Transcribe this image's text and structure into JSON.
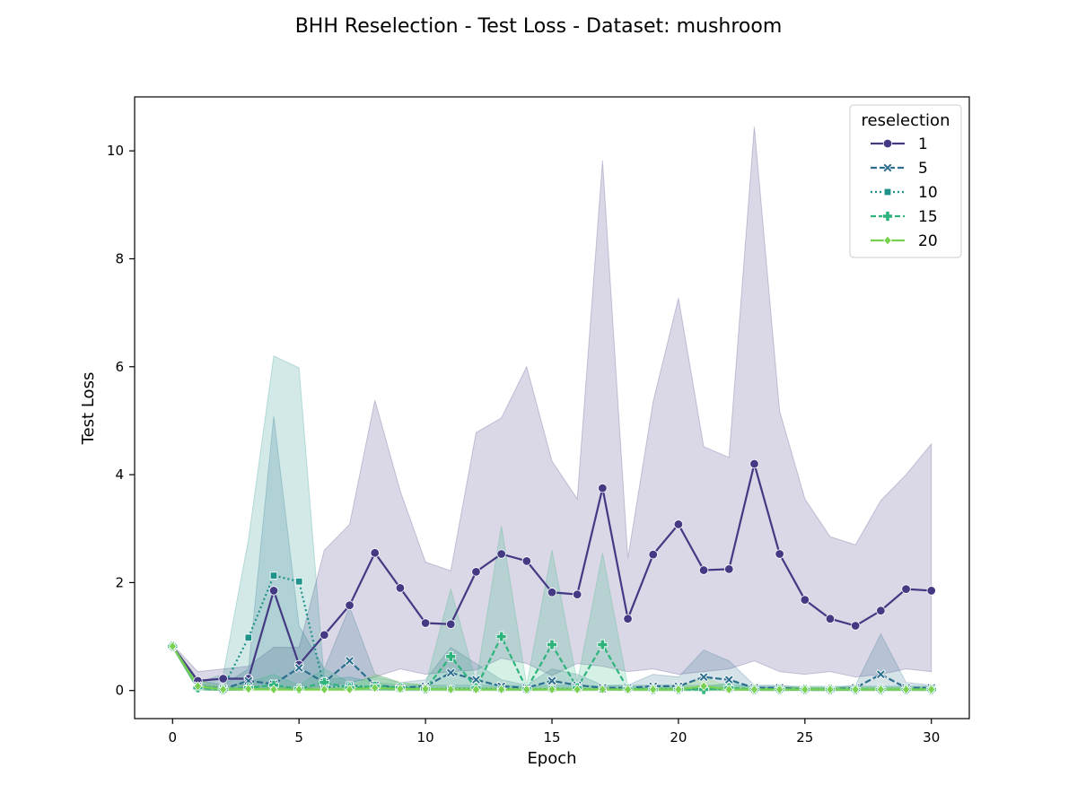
{
  "chart_data": {
    "type": "line",
    "title": "BHH Reselection - Test Loss - Dataset: mushroom",
    "xlabel": "Epoch",
    "ylabel": "Test Loss",
    "xlim": [
      -1.5,
      31.5
    ],
    "ylim": [
      -0.52,
      11.0
    ],
    "xticks": [
      0,
      5,
      10,
      15,
      20,
      25,
      30
    ],
    "yticks": [
      0,
      2,
      4,
      6,
      8,
      10
    ],
    "grid": false,
    "legend": {
      "title": "reselection",
      "placement": "top-right"
    },
    "x": [
      0,
      1,
      2,
      3,
      4,
      5,
      6,
      7,
      8,
      9,
      10,
      11,
      12,
      13,
      14,
      15,
      16,
      17,
      18,
      19,
      20,
      21,
      22,
      23,
      24,
      25,
      26,
      27,
      28,
      29,
      30
    ],
    "series": [
      {
        "name": "1",
        "color": "#443983",
        "dash": "",
        "marker": "circle",
        "values": [
          0.82,
          0.18,
          0.22,
          0.22,
          1.85,
          0.48,
          1.03,
          1.58,
          2.55,
          1.9,
          1.25,
          1.23,
          2.2,
          2.53,
          2.4,
          1.82,
          1.78,
          3.75,
          1.33,
          2.52,
          3.08,
          2.23,
          2.25,
          4.2,
          2.53,
          1.68,
          1.33,
          1.2,
          1.48,
          1.88,
          1.85
        ],
        "band_upper": [
          0.85,
          0.35,
          0.4,
          0.45,
          0.8,
          0.8,
          2.6,
          3.08,
          5.38,
          3.7,
          2.38,
          2.22,
          4.78,
          5.05,
          6.0,
          4.25,
          3.55,
          9.82,
          2.45,
          5.35,
          7.27,
          4.52,
          4.32,
          10.45,
          5.18,
          3.55,
          2.85,
          2.7,
          3.52,
          4.0,
          4.57
        ],
        "band_lower": [
          0.8,
          0.05,
          0.02,
          0.02,
          0.05,
          0.02,
          0.08,
          0.15,
          0.25,
          0.4,
          0.3,
          0.35,
          0.38,
          0.6,
          0.5,
          0.28,
          0.5,
          0.45,
          0.35,
          0.4,
          0.3,
          0.35,
          0.4,
          0.55,
          0.35,
          0.3,
          0.35,
          0.25,
          0.3,
          0.4,
          0.35
        ]
      },
      {
        "name": "5",
        "color": "#2c6e8e",
        "dash": "7,3",
        "marker": "x",
        "values": [
          0.82,
          0.08,
          0.03,
          0.18,
          0.12,
          0.42,
          0.15,
          0.55,
          0.1,
          0.05,
          0.08,
          0.33,
          0.2,
          0.08,
          0.05,
          0.18,
          0.1,
          0.05,
          0.05,
          0.08,
          0.08,
          0.25,
          0.2,
          0.05,
          0.05,
          0.02,
          0.02,
          0.05,
          0.3,
          0.05,
          0.05
        ],
        "band_upper": [
          0.84,
          0.2,
          0.1,
          0.4,
          5.08,
          1.2,
          0.4,
          1.55,
          0.3,
          0.15,
          0.2,
          0.8,
          0.5,
          0.2,
          0.1,
          0.4,
          0.3,
          0.1,
          0.1,
          0.3,
          0.25,
          0.75,
          0.55,
          0.1,
          0.1,
          0.05,
          0.05,
          0.1,
          1.05,
          0.15,
          0.1
        ],
        "band_lower": [
          0.8,
          0.02,
          0.0,
          0.02,
          0.02,
          0.05,
          0.02,
          0.05,
          0.02,
          0.01,
          0.02,
          0.05,
          0.05,
          0.02,
          0.01,
          0.03,
          0.02,
          0.01,
          0.01,
          0.02,
          0.02,
          0.02,
          0.02,
          0.01,
          0.01,
          0.0,
          0.0,
          0.01,
          0.02,
          0.01,
          0.01
        ]
      },
      {
        "name": "10",
        "color": "#1f928c",
        "dash": "2,3",
        "marker": "square",
        "values": [
          0.82,
          0.06,
          0.05,
          0.98,
          2.13,
          2.02,
          0.05,
          0.1,
          0.05,
          0.03,
          0.03,
          0.03,
          0.03,
          0.03,
          0.02,
          0.03,
          0.03,
          0.02,
          0.03,
          0.03,
          0.03,
          0.03,
          0.03,
          0.02,
          0.02,
          0.02,
          0.02,
          0.02,
          0.02,
          0.02,
          0.02
        ],
        "band_upper": [
          0.84,
          0.15,
          0.3,
          2.8,
          6.2,
          5.98,
          0.2,
          0.25,
          0.15,
          0.1,
          0.1,
          0.1,
          0.1,
          0.1,
          0.08,
          0.1,
          0.1,
          0.08,
          0.1,
          0.1,
          0.1,
          0.1,
          0.1,
          0.08,
          0.08,
          0.08,
          0.08,
          0.08,
          0.08,
          0.08,
          0.08
        ],
        "band_lower": [
          0.8,
          0.01,
          0.0,
          0.01,
          0.02,
          0.02,
          0.01,
          0.01,
          0.01,
          0.0,
          0.0,
          0.0,
          0.0,
          0.0,
          0.0,
          0.0,
          0.0,
          0.0,
          0.0,
          0.0,
          0.0,
          0.0,
          0.0,
          0.0,
          0.0,
          0.0,
          0.0,
          0.0,
          0.0,
          0.0,
          0.0
        ]
      },
      {
        "name": "15",
        "color": "#2eb37c",
        "dash": "6,3",
        "marker": "plus",
        "values": [
          0.82,
          0.05,
          0.02,
          0.05,
          0.1,
          0.03,
          0.15,
          0.05,
          0.08,
          0.05,
          0.03,
          0.63,
          0.05,
          1.0,
          0.03,
          0.85,
          0.05,
          0.85,
          0.03,
          0.02,
          0.02,
          0.02,
          0.05,
          0.02,
          0.02,
          0.02,
          0.02,
          0.02,
          0.02,
          0.02,
          0.02
        ],
        "band_upper": [
          0.84,
          0.12,
          0.06,
          0.15,
          0.3,
          0.1,
          0.4,
          0.15,
          0.25,
          0.15,
          0.1,
          1.88,
          0.15,
          3.05,
          0.1,
          2.6,
          0.15,
          2.55,
          0.08,
          0.06,
          0.06,
          0.06,
          0.15,
          0.06,
          0.06,
          0.06,
          0.06,
          0.06,
          0.06,
          0.06,
          0.06
        ],
        "band_lower": [
          0.8,
          0.01,
          0.0,
          0.01,
          0.02,
          0.01,
          0.02,
          0.01,
          0.02,
          0.01,
          0.01,
          0.02,
          0.01,
          0.02,
          0.0,
          0.02,
          0.01,
          0.02,
          0.0,
          0.0,
          0.0,
          0.0,
          0.01,
          0.0,
          0.0,
          0.0,
          0.0,
          0.0,
          0.0,
          0.0,
          0.0
        ]
      },
      {
        "name": "20",
        "color": "#7ad151",
        "dash": "",
        "marker": "diamond",
        "values": [
          0.82,
          0.08,
          0.02,
          0.03,
          0.02,
          0.02,
          0.02,
          0.02,
          0.05,
          0.03,
          0.03,
          0.02,
          0.02,
          0.02,
          0.02,
          0.02,
          0.02,
          0.02,
          0.02,
          0.02,
          0.02,
          0.08,
          0.02,
          0.02,
          0.02,
          0.02,
          0.02,
          0.02,
          0.02,
          0.02,
          0.02
        ],
        "band_upper": [
          0.84,
          0.2,
          0.06,
          0.1,
          0.06,
          0.06,
          0.06,
          0.06,
          0.3,
          0.15,
          0.1,
          0.06,
          0.06,
          0.06,
          0.06,
          0.06,
          0.06,
          0.06,
          0.06,
          0.06,
          0.06,
          0.25,
          0.06,
          0.06,
          0.06,
          0.06,
          0.06,
          0.06,
          0.06,
          0.06,
          0.06
        ],
        "band_lower": [
          0.8,
          0.01,
          0.0,
          0.0,
          0.0,
          0.0,
          0.0,
          0.0,
          0.0,
          0.0,
          0.0,
          0.0,
          0.0,
          0.0,
          0.0,
          0.0,
          0.0,
          0.0,
          0.0,
          0.0,
          0.0,
          0.0,
          0.0,
          0.0,
          0.0,
          0.0,
          0.0,
          0.0,
          0.0,
          0.0,
          0.0
        ]
      }
    ]
  }
}
